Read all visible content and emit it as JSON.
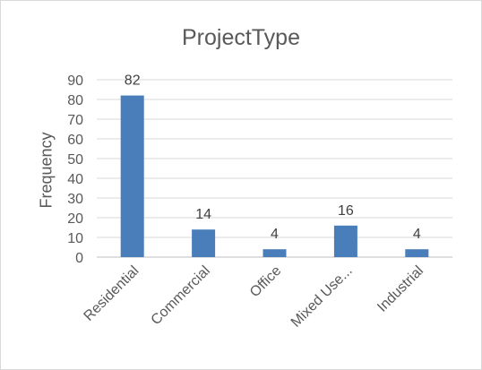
{
  "chart_data": {
    "type": "bar",
    "title": "ProjectType",
    "xlabel": "",
    "ylabel": "Frequency",
    "categories": [
      "Residential",
      "Commercial",
      "Office",
      "Mixed Use...",
      "Industrial"
    ],
    "values": [
      82,
      14,
      4,
      16,
      4
    ],
    "data_labels": [
      "82",
      "14",
      "4",
      "16",
      "4"
    ],
    "ylim": [
      0,
      90
    ],
    "yticks": [
      "0",
      "10",
      "20",
      "30",
      "40",
      "50",
      "60",
      "70",
      "80",
      "90"
    ],
    "grid": true,
    "legend": "none",
    "bar_color": "#4a7ebb",
    "gridline_color": "#d9d9d9"
  }
}
